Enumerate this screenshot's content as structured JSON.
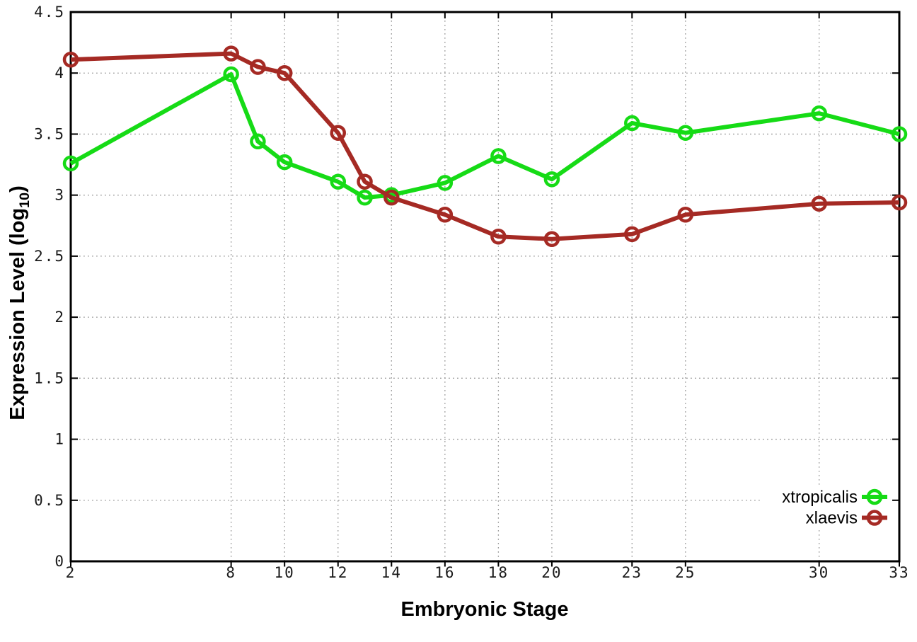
{
  "chart_data": {
    "type": "line",
    "xlabel": "Embryonic Stage",
    "ylabel": "Expression Level (log10)",
    "ylabel_display": {
      "main": "Expression Level (log",
      "sub": "10",
      "end": ")"
    },
    "x": [
      2,
      8,
      9,
      10,
      12,
      13,
      14,
      16,
      18,
      20,
      23,
      25,
      30,
      33
    ],
    "xlim": [
      2,
      33
    ],
    "ylim": [
      0,
      4.5
    ],
    "x_tick_values": [
      2,
      8,
      10,
      12,
      14,
      16,
      18,
      20,
      23,
      25,
      30,
      33
    ],
    "x_tick_labels": [
      "2",
      "8",
      "10",
      "12",
      "14",
      "16",
      "18",
      "20",
      "23",
      "25",
      "30",
      "33"
    ],
    "y_tick_values": [
      0,
      0.5,
      1,
      1.5,
      2,
      2.5,
      3,
      3.5,
      4,
      4.5
    ],
    "y_tick_labels": [
      "0",
      "0.5",
      "1",
      "1.5",
      "2",
      "2.5",
      "3",
      "3.5",
      "4",
      "4.5"
    ],
    "grid": true,
    "legend_position": "bottom-right",
    "series": [
      {
        "name": "xtropicalis",
        "color": "#16DB16",
        "marker": "open-circle",
        "values": [
          3.26,
          3.99,
          3.44,
          3.27,
          3.11,
          2.98,
          3.0,
          3.1,
          3.32,
          3.13,
          3.59,
          3.51,
          3.67,
          3.5
        ]
      },
      {
        "name": "xlaevis",
        "color": "#A52A24",
        "marker": "open-circle",
        "values": [
          4.11,
          4.16,
          4.05,
          4.0,
          3.51,
          3.11,
          2.98,
          2.84,
          2.66,
          2.64,
          2.68,
          2.84,
          2.93,
          2.94
        ]
      }
    ]
  },
  "styles": {
    "background": "#ffffff",
    "grid_color": "#9a9a9a",
    "axis_color": "#000000",
    "tick_label_color": "#1a1a1a"
  }
}
